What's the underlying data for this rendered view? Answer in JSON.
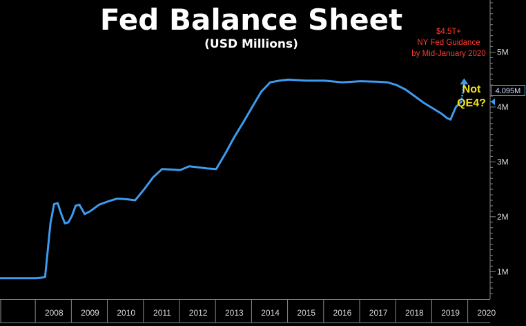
{
  "title": "Fed Balance Sheet",
  "subtitle": "(USD Millions)",
  "annotations": {
    "guidance": [
      "$4.5T+",
      "NY Fed Guidance",
      "by Mid-January 2020"
    ],
    "callout": [
      "Not",
      "QE4?"
    ],
    "last_value": "4.095M"
  },
  "colors": {
    "line": "#3d9bf0",
    "guidance_text": "#ff3b30",
    "callout_text": "#f5e11a",
    "background": "#000000"
  },
  "chart_data": {
    "type": "line",
    "title": "Fed Balance Sheet",
    "subtitle": "(USD Millions)",
    "x_ticks": [
      "2008",
      "2009",
      "2010",
      "2011",
      "2012",
      "2013",
      "2014",
      "2015",
      "2016",
      "2017",
      "2018",
      "2019",
      "2020"
    ],
    "y_ticks": [
      "1M",
      "2M",
      "3M",
      "4M",
      "5M"
    ],
    "y_tick_values": [
      1,
      2,
      3,
      4,
      5
    ],
    "xlim": [
      2007.0,
      2020.6
    ],
    "ylim": [
      0.5,
      5.95
    ],
    "y_axis_side": "right",
    "series": [
      {
        "x": [
          2007.0,
          2007.5,
          2008.0,
          2008.15,
          2008.25,
          2008.4,
          2008.5,
          2008.6,
          2008.7,
          2008.8,
          2008.9,
          2009.0,
          2009.1,
          2009.2,
          2009.35,
          2009.5,
          2009.75,
          2010.0,
          2010.25,
          2010.5,
          2010.75,
          2011.0,
          2011.25,
          2011.5,
          2011.75,
          2012.0,
          2012.25,
          2012.5,
          2012.75,
          2013.0,
          2013.25,
          2013.5,
          2013.75,
          2014.0,
          2014.25,
          2014.5,
          2014.75,
          2015.0,
          2015.5,
          2016.0,
          2016.5,
          2017.0,
          2017.5,
          2017.75,
          2018.0,
          2018.25,
          2018.5,
          2018.75,
          2019.0,
          2019.25,
          2019.4,
          2019.5,
          2019.65,
          2019.8
        ],
        "values": [
          0.88,
          0.88,
          0.88,
          0.89,
          0.9,
          1.88,
          2.23,
          2.25,
          2.05,
          1.88,
          1.9,
          2.02,
          2.2,
          2.22,
          2.05,
          2.1,
          2.22,
          2.28,
          2.33,
          2.32,
          2.3,
          2.5,
          2.72,
          2.87,
          2.86,
          2.85,
          2.92,
          2.9,
          2.88,
          2.87,
          3.15,
          3.45,
          3.72,
          4.0,
          4.28,
          4.45,
          4.48,
          4.5,
          4.48,
          4.48,
          4.45,
          4.47,
          4.46,
          4.45,
          4.4,
          4.32,
          4.2,
          4.08,
          3.98,
          3.88,
          3.8,
          3.77,
          4.0,
          4.095
        ]
      }
    ],
    "projection": {
      "x": [
        2019.8,
        2019.88
      ],
      "values": [
        4.095,
        4.5
      ]
    }
  }
}
